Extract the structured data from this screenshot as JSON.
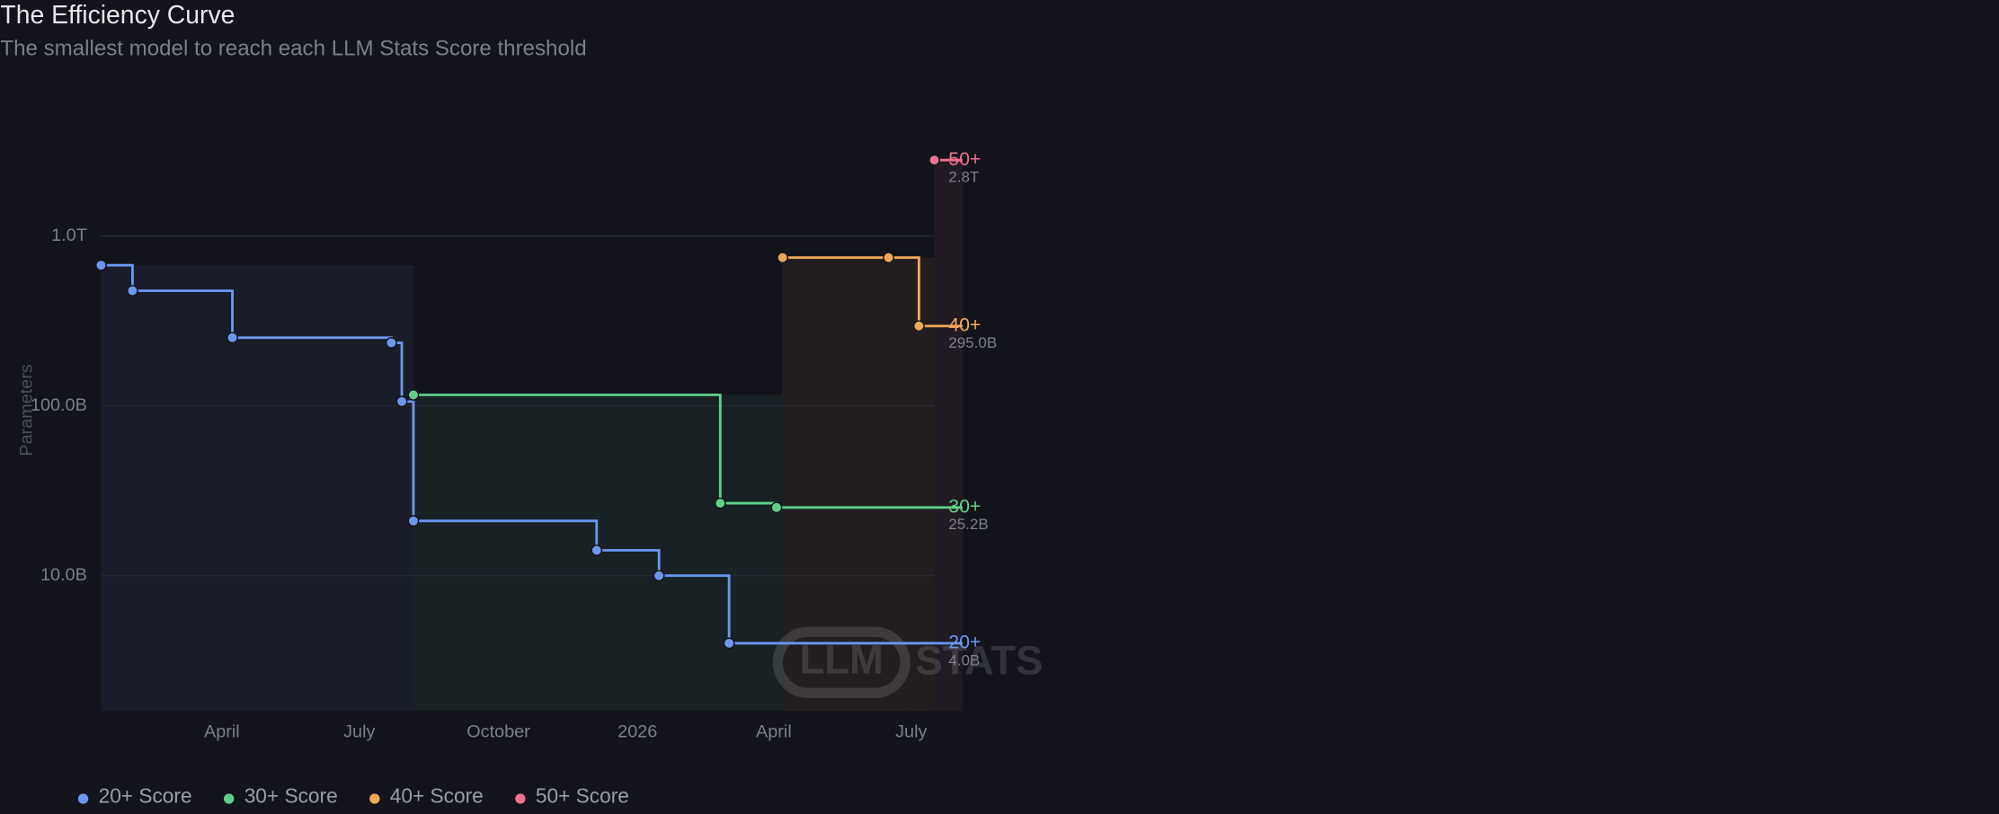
{
  "chart_data": {
    "type": "step",
    "title": "The Efficiency Curve",
    "subtitle": "The smallest model to reach each LLM Stats Score threshold",
    "y_label": "Parameters",
    "watermark": [
      "LLM",
      "STATS"
    ],
    "log_y": true,
    "grid": true,
    "xlim": [
      2025.028,
      2026.589
    ],
    "xticks": [
      {
        "value": 2025.247,
        "label": "April"
      },
      {
        "value": 2025.496,
        "label": "July"
      },
      {
        "value": 2025.748,
        "label": "October"
      },
      2026,
      {
        "value": 2026.247,
        "label": "April"
      },
      {
        "value": 2026.496,
        "label": "July"
      }
    ],
    "ylim": [
      1.6,
      4000
    ],
    "yticks": [
      {
        "value": 10,
        "label": "10.0B"
      },
      {
        "value": 100,
        "label": "100.0B"
      },
      {
        "value": 1000,
        "label": "1.0T"
      }
    ],
    "legend": "bottom-left",
    "series": [
      {
        "name": "20+ Score",
        "tag": "20+",
        "tag_value": "4.0B",
        "color": "#6b97f0",
        "x": [
          2025.028,
          2025.085,
          2025.266,
          2025.554,
          2025.573,
          2025.594,
          2025.926,
          2026.039,
          2026.166
        ],
        "values": [
          673,
          476,
          252,
          235,
          106,
          21,
          14.1,
          10,
          4.0
        ]
      },
      {
        "name": "30+ Score",
        "tag": "30+",
        "tag_value": "25.2B",
        "color": "#5fd08a",
        "x": [
          2025.594,
          2026.15,
          2026.252
        ],
        "values": [
          116,
          26.7,
          25.2
        ]
      },
      {
        "name": "40+ Score",
        "tag": "40+",
        "tag_value": "295.0B",
        "color": "#f0a858",
        "x": [
          2026.263,
          2026.455,
          2026.51
        ],
        "values": [
          746,
          746,
          295
        ]
      },
      {
        "name": "50+ Score",
        "tag": "50+",
        "tag_value": "2.8T",
        "color": "#f07090",
        "x": [
          2026.538
        ],
        "values": [
          2800
        ]
      }
    ]
  }
}
